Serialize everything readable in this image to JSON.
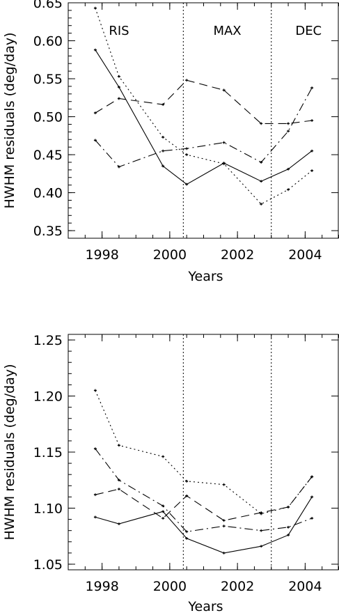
{
  "chart_data": [
    {
      "type": "line",
      "xlabel": "Years",
      "ylabel": "HWHM residuals (deg/day)",
      "xlim": [
        1997,
        2005
      ],
      "ylim": [
        0.34,
        0.65
      ],
      "xticks": [
        "1998",
        "2000",
        "2002",
        "2004"
      ],
      "yticks": [
        "0.35",
        "0.40",
        "0.45",
        "0.50",
        "0.55",
        "0.60",
        "0.65"
      ],
      "vlines": [
        2000.4,
        2003.0
      ],
      "phase_labels": [
        {
          "text": "RIS",
          "x": 1998.5
        },
        {
          "text": "MAX",
          "x": 2001.7
        },
        {
          "text": "DEC",
          "x": 2004.1
        }
      ],
      "series": [
        {
          "style": "solid",
          "x": [
            1997.8,
            1998.5,
            1999.8,
            2000.5,
            2001.6,
            2002.7,
            2003.5,
            2004.2
          ],
          "values": [
            0.588,
            0.539,
            0.435,
            0.411,
            0.439,
            0.415,
            0.431,
            0.455
          ]
        },
        {
          "style": "dotted",
          "x": [
            1997.8,
            1998.5,
            1999.8,
            2000.5,
            2001.6,
            2002.7,
            2003.5,
            2004.2
          ],
          "values": [
            0.643,
            0.553,
            0.473,
            0.45,
            0.438,
            0.385,
            0.404,
            0.429
          ]
        },
        {
          "style": "dashed",
          "x": [
            1997.8,
            1998.5,
            1999.8,
            2000.5,
            2001.6,
            2002.7,
            2003.5,
            2004.2
          ],
          "values": [
            0.505,
            0.524,
            0.516,
            0.548,
            0.535,
            0.491,
            0.491,
            0.495
          ]
        },
        {
          "style": "dashdot",
          "x": [
            1997.8,
            1998.5,
            1999.8,
            2000.5,
            2001.6,
            2002.7,
            2003.5,
            2004.2
          ],
          "values": [
            0.469,
            0.434,
            0.455,
            0.458,
            0.466,
            0.44,
            0.481,
            0.538
          ]
        }
      ]
    },
    {
      "type": "line",
      "xlabel": "Years",
      "ylabel": "HWHM residuals (deg/day)",
      "xlim": [
        1997,
        2005
      ],
      "ylim": [
        1.045,
        1.255
      ],
      "xticks": [
        "1998",
        "2000",
        "2002",
        "2004"
      ],
      "yticks": [
        "1.05",
        "1.10",
        "1.15",
        "1.20",
        "1.25"
      ],
      "vlines": [
        2000.4,
        2003.0
      ],
      "series": [
        {
          "style": "solid",
          "x": [
            1997.8,
            1998.5,
            1999.8,
            2000.5,
            2001.6,
            2002.7,
            2003.5,
            2004.2
          ],
          "values": [
            1.092,
            1.086,
            1.097,
            1.073,
            1.06,
            1.066,
            1.076,
            1.11
          ]
        },
        {
          "style": "dotted",
          "x": [
            1997.8,
            1998.5,
            1999.8,
            2000.5,
            2001.6,
            2002.7,
            2003.5,
            2004.2
          ],
          "values": [
            1.205,
            1.156,
            1.146,
            1.124,
            1.121,
            1.095,
            1.101,
            1.128
          ]
        },
        {
          "style": "dashed",
          "x": [
            1997.8,
            1998.5,
            1999.8,
            2000.5,
            2001.6,
            2002.7,
            2003.5,
            2004.2
          ],
          "values": [
            1.112,
            1.117,
            1.091,
            1.111,
            1.089,
            1.096,
            1.101,
            1.128
          ]
        },
        {
          "style": "dashdot",
          "x": [
            1997.8,
            1998.5,
            1999.8,
            2000.5,
            2001.6,
            2002.7,
            2003.5,
            2004.2
          ],
          "values": [
            1.153,
            1.125,
            1.102,
            1.079,
            1.084,
            1.08,
            1.083,
            1.091
          ]
        }
      ]
    }
  ]
}
